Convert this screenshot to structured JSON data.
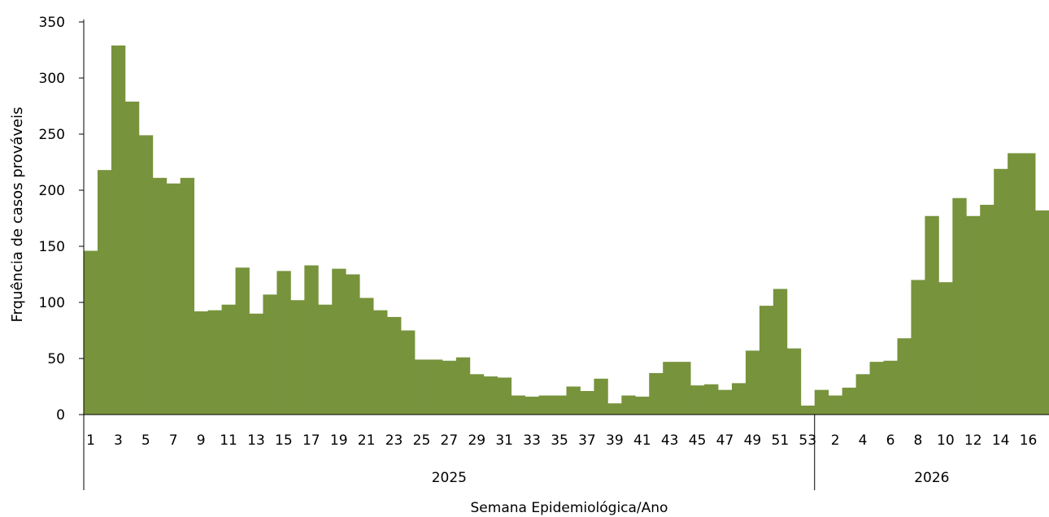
{
  "chart_data": {
    "type": "bar",
    "title": "",
    "xlabel": "Semana Epidemiológica/Ano",
    "ylabel": "Frquência de casos prováveis",
    "ylim": [
      0,
      350
    ],
    "yticks": [
      0,
      50,
      100,
      150,
      200,
      250,
      300,
      350
    ],
    "bar_color": "#77933c",
    "grid": false,
    "groups": [
      {
        "label": "2025",
        "categories": [
          "1",
          "2",
          "3",
          "4",
          "5",
          "6",
          "7",
          "8",
          "9",
          "10",
          "11",
          "12",
          "13",
          "14",
          "15",
          "16",
          "17",
          "18",
          "19",
          "20",
          "21",
          "22",
          "23",
          "24",
          "25",
          "26",
          "27",
          "28",
          "29",
          "30",
          "31",
          "32",
          "33",
          "34",
          "35",
          "36",
          "37",
          "38",
          "39",
          "40",
          "41",
          "42",
          "43",
          "44",
          "45",
          "46",
          "47",
          "48",
          "49",
          "50",
          "51",
          "52",
          "53"
        ],
        "tick_labels": [
          "1",
          "",
          "3",
          "",
          "5",
          "",
          "7",
          "",
          "9",
          "",
          "11",
          "",
          "13",
          "",
          "15",
          "",
          "17",
          "",
          "19",
          "",
          "21",
          "",
          "23",
          "",
          "25",
          "",
          "27",
          "",
          "29",
          "",
          "31",
          "",
          "33",
          "",
          "35",
          "",
          "37",
          "",
          "39",
          "",
          "41",
          "",
          "43",
          "",
          "45",
          "",
          "47",
          "",
          "49",
          "",
          "51",
          "",
          "53"
        ],
        "values": [
          146,
          218,
          329,
          279,
          249,
          211,
          206,
          211,
          92,
          93,
          98,
          131,
          90,
          107,
          128,
          102,
          133,
          98,
          130,
          125,
          104,
          93,
          87,
          75,
          49,
          49,
          48,
          51,
          36,
          34,
          33,
          17,
          16,
          17,
          17,
          25,
          21,
          32,
          10,
          17,
          16,
          37,
          47,
          47,
          26,
          27,
          22,
          28,
          57,
          97,
          112,
          59,
          8
        ]
      },
      {
        "label": "2026",
        "categories": [
          "1",
          "2",
          "3",
          "4",
          "5",
          "6",
          "7",
          "8",
          "9",
          "10",
          "11",
          "12",
          "13",
          "14",
          "15",
          "16",
          "17"
        ],
        "tick_labels": [
          "",
          "2",
          "",
          "4",
          "",
          "6",
          "",
          "8",
          "",
          "10",
          "",
          "12",
          "",
          "14",
          "",
          "16",
          ""
        ],
        "values": [
          22,
          17,
          24,
          36,
          47,
          48,
          68,
          120,
          177,
          118,
          193,
          177,
          187,
          219,
          233,
          233,
          182
        ]
      }
    ]
  }
}
